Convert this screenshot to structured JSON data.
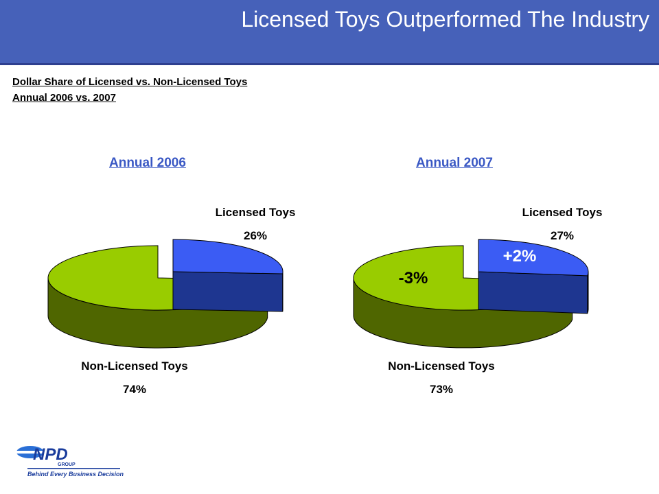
{
  "header": {
    "title": "Licensed Toys Outperformed The Industry"
  },
  "subtitle": {
    "line1": "Dollar Share of Licensed vs. Non-Licensed Toys",
    "line2": "Annual 2006 vs. 2007"
  },
  "chart_data": [
    {
      "type": "pie",
      "title": "Annual 2006",
      "labels": [
        "Licensed Toys",
        "Non-Licensed Toys"
      ],
      "values": [
        26,
        74
      ],
      "value_labels": [
        "26%",
        "74%"
      ],
      "colors": [
        "#3b5cf4",
        "#99cc00"
      ],
      "side_colors": [
        "#1e3690",
        "#4f6600"
      ]
    },
    {
      "type": "pie",
      "title": "Annual 2007",
      "labels": [
        "Licensed Toys",
        "Non-Licensed Toys"
      ],
      "values": [
        27,
        73
      ],
      "value_labels": [
        "27%",
        "73%"
      ],
      "change_labels": [
        "+2%",
        "-3%"
      ],
      "colors": [
        "#3b5cf4",
        "#99cc00"
      ],
      "side_colors": [
        "#1e3690",
        "#4f6600"
      ]
    }
  ],
  "logo": {
    "brand": "NPD",
    "group": "GROUP",
    "tagline": "Behind Every Business Decision"
  }
}
